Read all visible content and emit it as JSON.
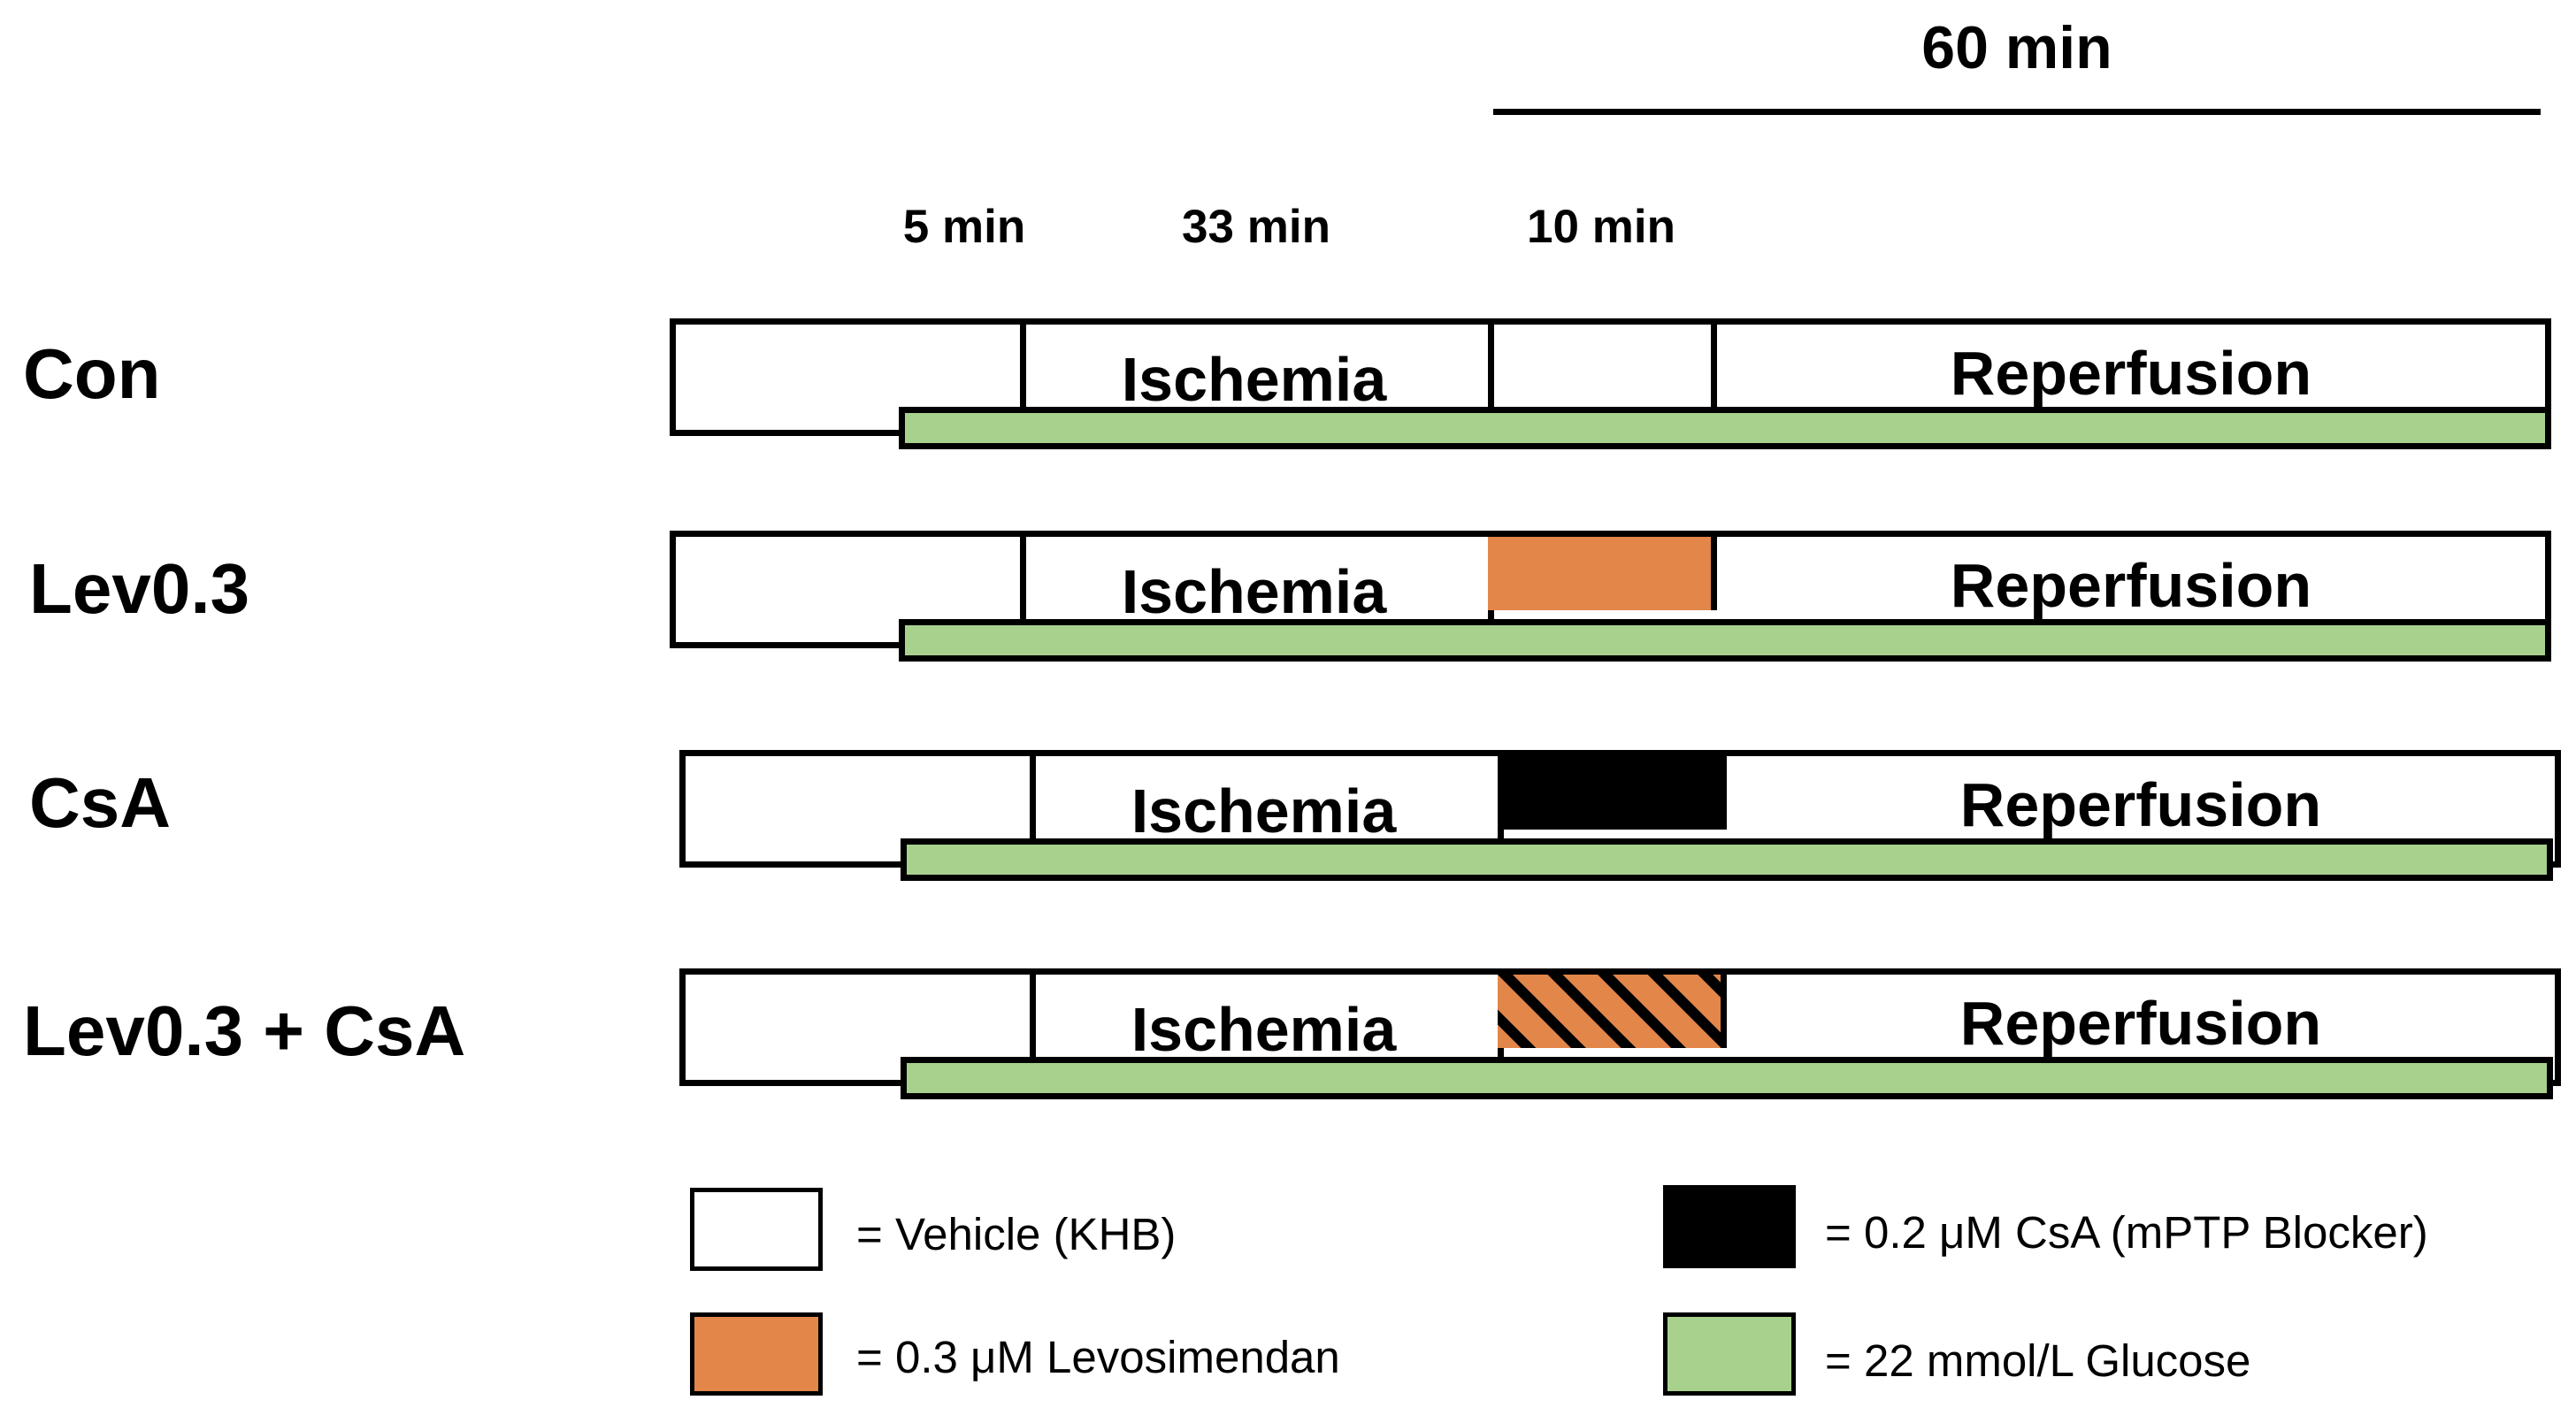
{
  "colors": {
    "vehicle": "#ffffff",
    "levosimendan": "#e2864a",
    "csa": "#000000",
    "glucose": "#a9d18e",
    "outline": "#000000"
  },
  "header": {
    "reperfusion_duration": "60 min",
    "durations": [
      "5 min",
      "33 min",
      "10 min"
    ]
  },
  "rows": [
    {
      "label": "Con",
      "treatment": "vehicle",
      "ischemia": "Ischemia",
      "reperfusion": "Reperfusion"
    },
    {
      "label": "Lev0.3",
      "treatment": "levosimendan",
      "ischemia": "Ischemia",
      "reperfusion": "Reperfusion"
    },
    {
      "label": "CsA",
      "treatment": "csa",
      "ischemia": "Ischemia",
      "reperfusion": "Reperfusion"
    },
    {
      "label": "Lev0.3 + CsA",
      "treatment": "levosimendan+csa",
      "ischemia": "Ischemia",
      "reperfusion": "Reperfusion"
    }
  ],
  "legend": [
    {
      "swatch": "vehicle",
      "text": "= Vehicle (KHB)"
    },
    {
      "swatch": "levosimendan",
      "text": "= 0.3 μM Levosimendan"
    },
    {
      "swatch": "csa",
      "text": "= 0.2 μM CsA  (mPTP Blocker)"
    },
    {
      "swatch": "glucose",
      "text": "= 22 mmol/L Glucose"
    }
  ]
}
